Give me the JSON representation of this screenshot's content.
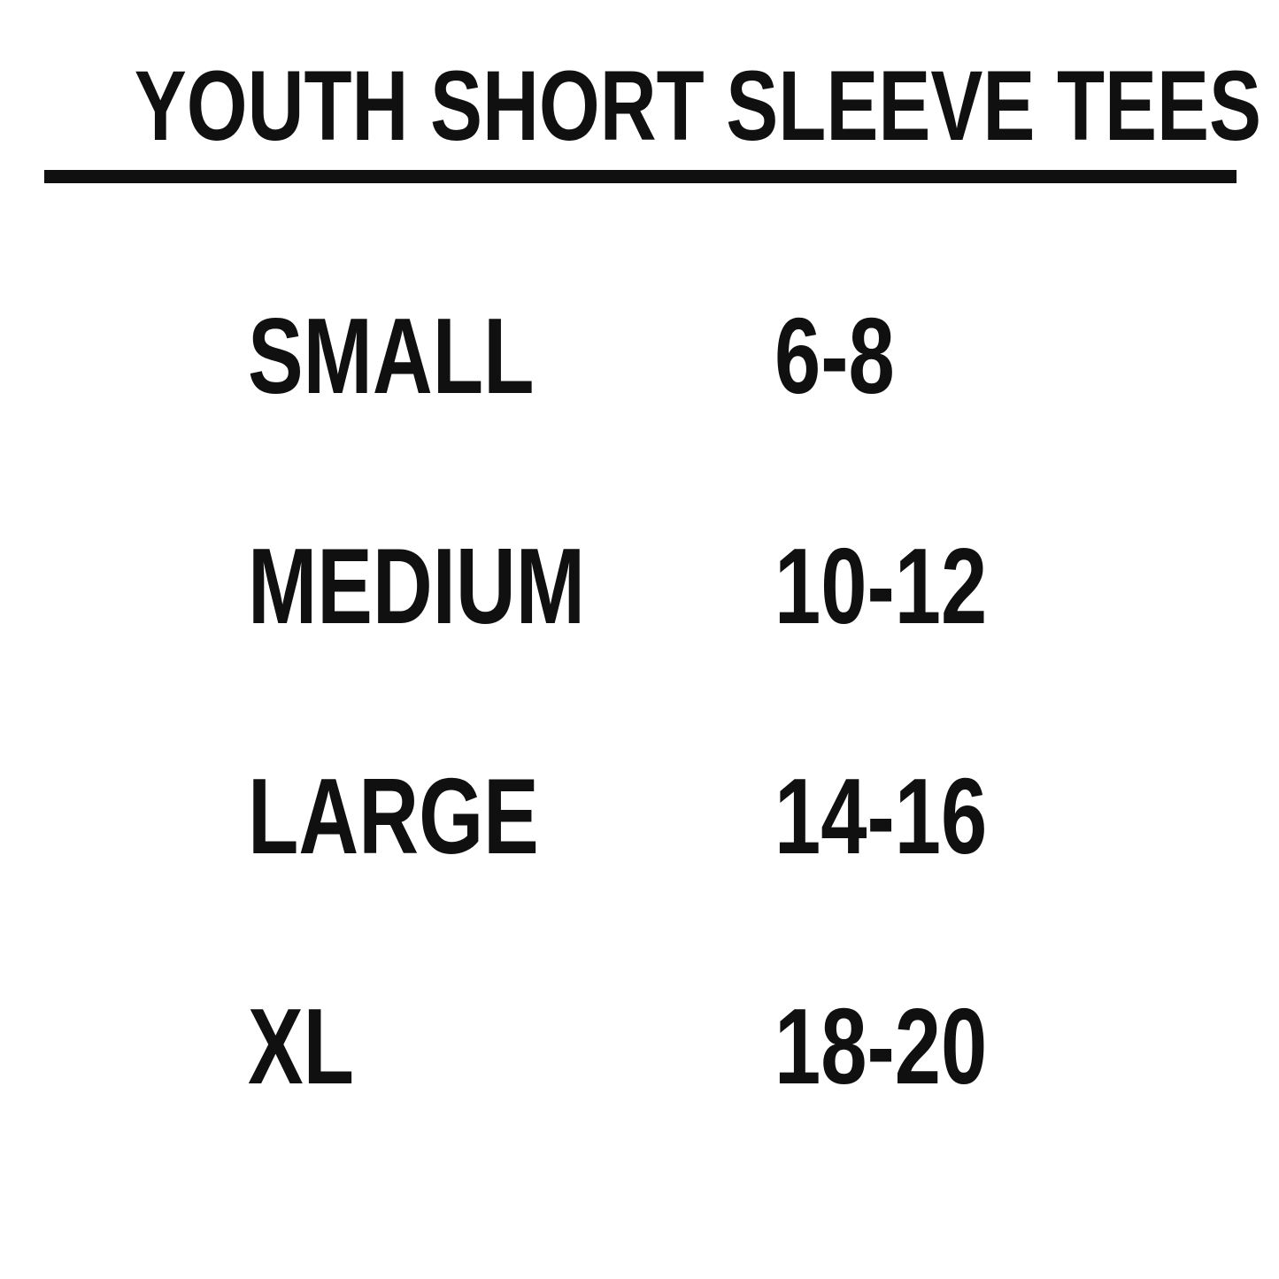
{
  "page": {
    "background_color": "#ffffff",
    "text_color": "#101010"
  },
  "header": {
    "title": "YOUTH SHORT SLEEVE TEES"
  },
  "size_chart": {
    "rows": [
      {
        "size": "SMALL",
        "range": "6-8"
      },
      {
        "size": "MEDIUM",
        "range": "10-12"
      },
      {
        "size": "LARGE",
        "range": "14-16"
      },
      {
        "size": "XL",
        "range": "18-20"
      }
    ]
  }
}
